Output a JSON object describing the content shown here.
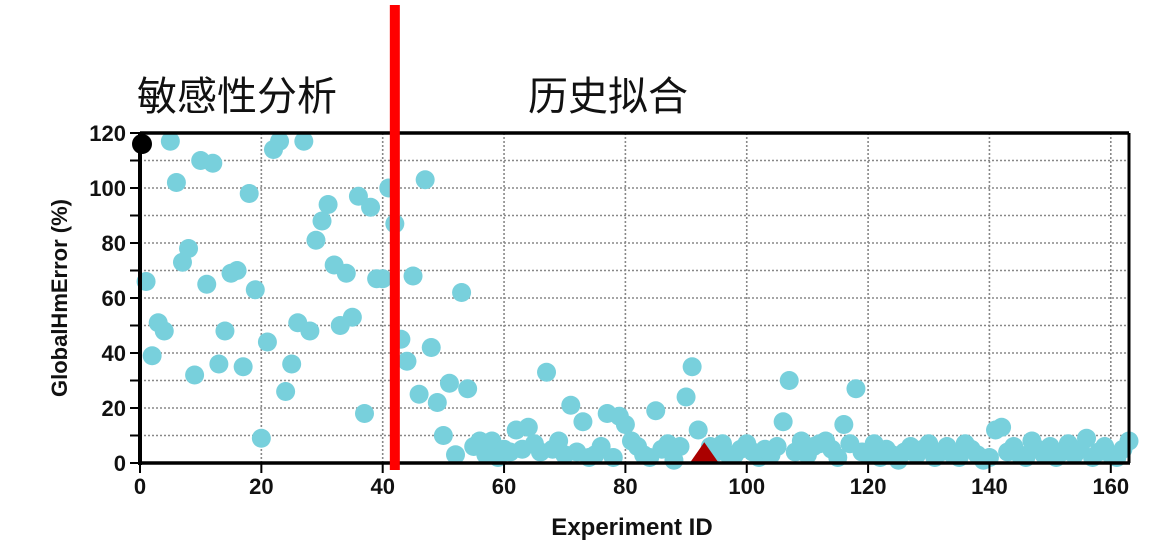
{
  "sections": {
    "left_label": "敏感性分析",
    "right_label": "历史拟合"
  },
  "chart_data": {
    "type": "scatter",
    "title": "",
    "xlabel": "Experiment ID",
    "ylabel": "GlobalHmError (%)",
    "xlim": [
      0,
      163
    ],
    "ylim": [
      0,
      120
    ],
    "xticks": [
      0,
      20,
      40,
      60,
      80,
      100,
      120,
      140,
      160
    ],
    "yticks": [
      0,
      20,
      40,
      60,
      80,
      100,
      120
    ],
    "grid": true,
    "divider": {
      "x": 42,
      "color": "#ff0000",
      "label_left": "敏感性分析",
      "label_right": "历史拟合"
    },
    "colors": {
      "points": "#78d0dc",
      "initial": "#000000",
      "best": "#aa0000",
      "divider": "#ff0000"
    },
    "special_points": [
      {
        "name": "initial",
        "marker": "circle",
        "x": 0,
        "y": 116
      },
      {
        "name": "best",
        "marker": "diamond",
        "x": 93,
        "y": 1
      }
    ],
    "series": [
      {
        "name": "experiments",
        "x": [
          1,
          2,
          3,
          4,
          5,
          6,
          7,
          8,
          9,
          10,
          11,
          12,
          13,
          14,
          15,
          16,
          17,
          18,
          19,
          20,
          21,
          22,
          23,
          24,
          25,
          26,
          27,
          28,
          29,
          30,
          31,
          32,
          33,
          34,
          35,
          36,
          37,
          38,
          39,
          40,
          41,
          42,
          43,
          44,
          45,
          46,
          47,
          48,
          49,
          50,
          51,
          52,
          53,
          54,
          55,
          56,
          57,
          58,
          59,
          60,
          61,
          62,
          63,
          64,
          65,
          66,
          67,
          68,
          69,
          70,
          71,
          72,
          73,
          74,
          75,
          76,
          77,
          78,
          79,
          80,
          81,
          82,
          83,
          84,
          85,
          86,
          87,
          88,
          89,
          90,
          91,
          92,
          94,
          95,
          96,
          97,
          98,
          99,
          100,
          101,
          102,
          103,
          104,
          105,
          106,
          107,
          108,
          109,
          110,
          111,
          112,
          113,
          114,
          115,
          116,
          117,
          118,
          119,
          120,
          121,
          122,
          123,
          124,
          125,
          126,
          127,
          128,
          129,
          130,
          131,
          132,
          133,
          134,
          135,
          136,
          137,
          138,
          139,
          140,
          141,
          142,
          143,
          144,
          145,
          146,
          147,
          148,
          149,
          150,
          151,
          152,
          153,
          154,
          155,
          156,
          157,
          158,
          159,
          160,
          161,
          162,
          163
        ],
        "y": [
          66,
          39,
          51,
          48,
          117,
          102,
          73,
          78,
          32,
          110,
          65,
          109,
          36,
          48,
          69,
          70,
          35,
          98,
          63,
          9,
          44,
          114,
          117,
          26,
          36,
          51,
          117,
          48,
          81,
          88,
          94,
          72,
          50,
          69,
          53,
          97,
          18,
          93,
          67,
          67,
          100,
          87,
          45,
          37,
          68,
          25,
          103,
          42,
          22,
          10,
          29,
          3,
          62,
          27,
          6,
          8,
          3,
          8,
          2,
          5,
          4,
          12,
          5,
          13,
          7,
          4,
          33,
          5,
          8,
          3,
          21,
          4,
          15,
          2,
          3,
          6,
          18,
          2,
          17,
          14,
          8,
          6,
          3,
          2,
          19,
          5,
          7,
          1,
          6,
          24,
          35,
          12,
          6,
          4,
          7,
          3,
          3,
          5,
          7,
          4,
          2,
          5,
          3,
          6,
          15,
          30,
          4,
          8,
          3,
          6,
          7,
          8,
          5,
          2,
          14,
          7,
          27,
          4,
          3,
          7,
          2,
          5,
          3,
          1,
          4,
          6,
          3,
          5,
          7,
          2,
          4,
          6,
          3,
          2,
          7,
          5,
          3,
          1,
          2,
          12,
          13,
          4,
          6,
          3,
          2,
          8,
          5,
          3,
          6,
          2,
          4,
          7,
          3,
          5,
          9,
          2,
          4,
          6,
          3,
          2,
          5,
          8
        ]
      }
    ]
  }
}
